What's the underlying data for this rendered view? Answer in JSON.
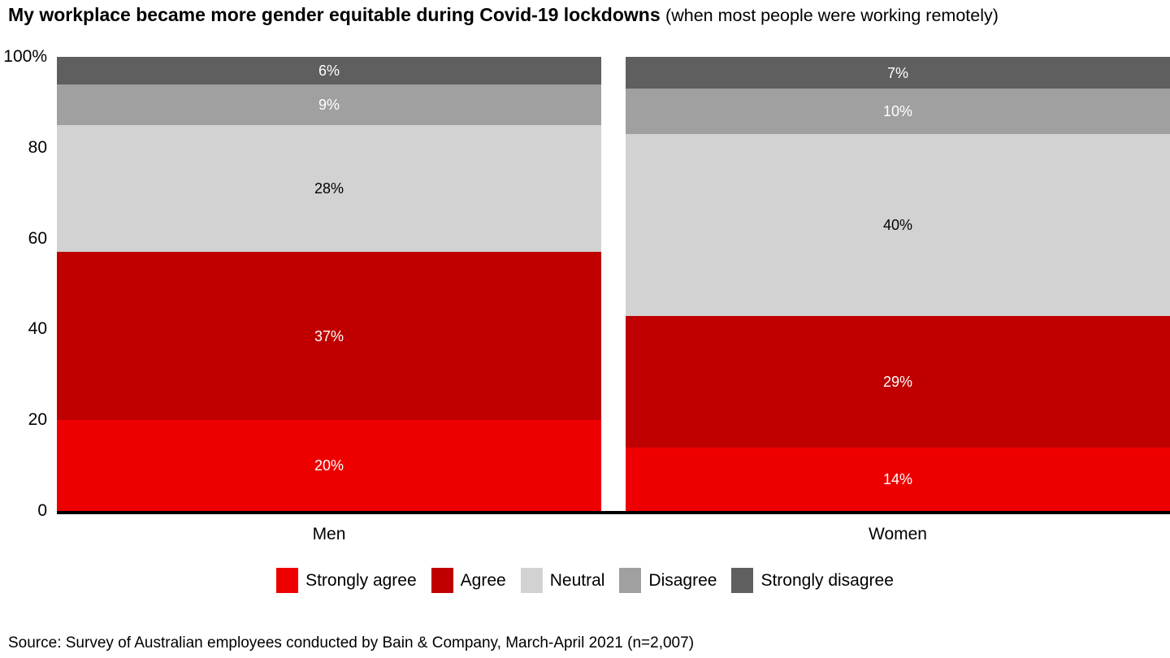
{
  "title": "My workplace became more gender equitable during Covid-19 lockdowns",
  "subtitle": "(when most people were working remotely)",
  "source": "Source: Survey of Australian employees conducted by Bain & Company, March-April 2021 (n=2,007)",
  "chart_data": {
    "type": "bar",
    "stacked": true,
    "percent_stacked": true,
    "grid": false,
    "legend_position": "bottom",
    "categories": [
      "Men",
      "Women"
    ],
    "series": [
      {
        "name": "Strongly agree",
        "values": [
          20,
          14
        ],
        "color": "#ee0000",
        "label_color": "#ffffff"
      },
      {
        "name": "Agree",
        "values": [
          37,
          29
        ],
        "color": "#c00000",
        "label_color": "#ffffff"
      },
      {
        "name": "Neutral",
        "values": [
          28,
          40
        ],
        "color": "#d2d2d2",
        "label_color": "#000000"
      },
      {
        "name": "Disagree",
        "values": [
          9,
          10
        ],
        "color": "#a0a0a0",
        "label_color": "#ffffff"
      },
      {
        "name": "Strongly disagree",
        "values": [
          6,
          7
        ],
        "color": "#5f5f5f",
        "label_color": "#ffffff"
      }
    ],
    "value_suffix": "%",
    "y_axis": {
      "min": 0,
      "max": 100,
      "ticks": [
        {
          "value": 0,
          "label": "0"
        },
        {
          "value": 20,
          "label": "20"
        },
        {
          "value": 40,
          "label": "40"
        },
        {
          "value": 60,
          "label": "60"
        },
        {
          "value": 80,
          "label": "80"
        },
        {
          "value": 100,
          "label": "100%"
        }
      ]
    },
    "axis_line_color": "#000000"
  }
}
